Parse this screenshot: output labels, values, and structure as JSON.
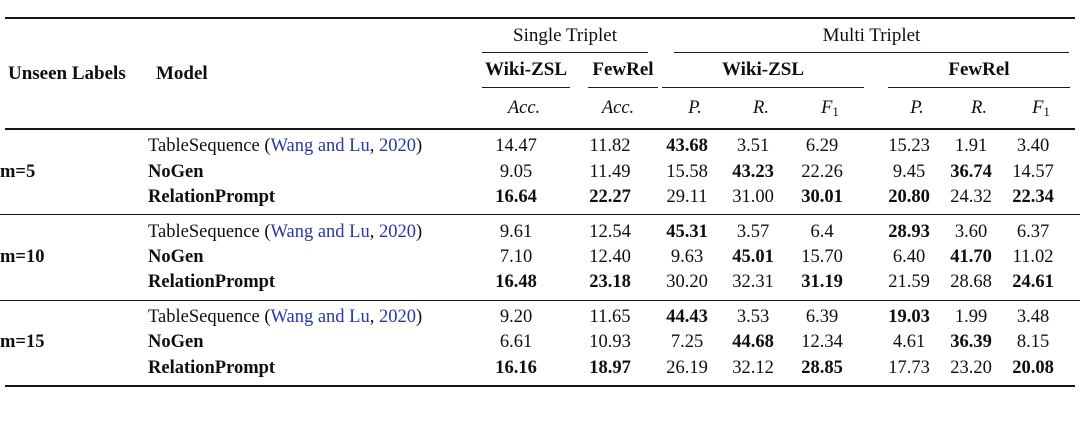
{
  "table": {
    "header": {
      "unseen_labels": "Unseen Labels",
      "model": "Model",
      "single_triplet": "Single Triplet",
      "multi_triplet": "Multi Triplet",
      "single_wiki": "Wiki-ZSL",
      "single_fewrel": "FewRel",
      "multi_wiki": "Wiki-ZSL",
      "multi_fewrel": "FewRel",
      "acc": "Acc.",
      "p": "P.",
      "r": "R.",
      "f_base": "F",
      "f_sub": "1"
    },
    "colors": {
      "citation_blue": "#2936a8",
      "text": "#0e0e0e"
    },
    "groups": [
      {
        "label": "m=5",
        "rows": [
          {
            "model": "TableSequence",
            "citation_authors": "Wang and Lu",
            "citation_year": "2020",
            "bold_model": false,
            "values": [
              "14.47",
              "11.82",
              "43.68",
              "3.51",
              "6.29",
              "15.23",
              "1.91",
              "3.40"
            ],
            "bold": [
              false,
              false,
              true,
              false,
              false,
              false,
              false,
              false
            ]
          },
          {
            "model": "NoGen",
            "bold_model": true,
            "values": [
              "9.05",
              "11.49",
              "15.58",
              "43.23",
              "22.26",
              "9.45",
              "36.74",
              "14.57"
            ],
            "bold": [
              false,
              false,
              false,
              true,
              false,
              false,
              true,
              false
            ]
          },
          {
            "model": "RelationPrompt",
            "bold_model": true,
            "values": [
              "16.64",
              "22.27",
              "29.11",
              "31.00",
              "30.01",
              "20.80",
              "24.32",
              "22.34"
            ],
            "bold": [
              true,
              true,
              false,
              false,
              true,
              true,
              false,
              true
            ]
          }
        ]
      },
      {
        "label": "m=10",
        "rows": [
          {
            "model": "TableSequence",
            "citation_authors": "Wang and Lu",
            "citation_year": "2020",
            "bold_model": false,
            "values": [
              "9.61",
              "12.54",
              "45.31",
              "3.57",
              "6.4",
              "28.93",
              "3.60",
              "6.37"
            ],
            "bold": [
              false,
              false,
              true,
              false,
              false,
              true,
              false,
              false
            ]
          },
          {
            "model": "NoGen",
            "bold_model": true,
            "values": [
              "7.10",
              "12.40",
              "9.63",
              "45.01",
              "15.70",
              "6.40",
              "41.70",
              "11.02"
            ],
            "bold": [
              false,
              false,
              false,
              true,
              false,
              false,
              true,
              false
            ]
          },
          {
            "model": "RelationPrompt",
            "bold_model": true,
            "values": [
              "16.48",
              "23.18",
              "30.20",
              "32.31",
              "31.19",
              "21.59",
              "28.68",
              "24.61"
            ],
            "bold": [
              true,
              true,
              false,
              false,
              true,
              false,
              false,
              true
            ]
          }
        ]
      },
      {
        "label": "m=15",
        "rows": [
          {
            "model": "TableSequence",
            "citation_authors": "Wang and Lu",
            "citation_year": "2020",
            "bold_model": false,
            "values": [
              "9.20",
              "11.65",
              "44.43",
              "3.53",
              "6.39",
              "19.03",
              "1.99",
              "3.48"
            ],
            "bold": [
              false,
              false,
              true,
              false,
              false,
              true,
              false,
              false
            ]
          },
          {
            "model": "NoGen",
            "bold_model": true,
            "values": [
              "6.61",
              "10.93",
              "7.25",
              "44.68",
              "12.34",
              "4.61",
              "36.39",
              "8.15"
            ],
            "bold": [
              false,
              false,
              false,
              true,
              false,
              false,
              true,
              false
            ]
          },
          {
            "model": "RelationPrompt",
            "bold_model": true,
            "values": [
              "16.16",
              "18.97",
              "26.19",
              "32.12",
              "28.85",
              "17.73",
              "23.20",
              "20.08"
            ],
            "bold": [
              true,
              true,
              false,
              false,
              true,
              false,
              false,
              true
            ]
          }
        ]
      }
    ]
  }
}
